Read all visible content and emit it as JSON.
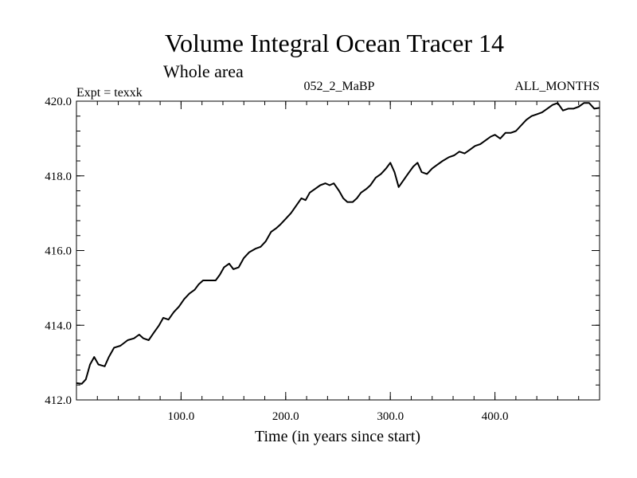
{
  "chart_data": {
    "type": "line",
    "title": "Volume Integral Ocean Tracer 14",
    "subtitle": "Whole area",
    "left_label": "Expt = texxk",
    "center_label": "052_2_MaBP",
    "right_label": "ALL_MONTHS",
    "xlabel": "Time (in years since start)",
    "ylabel": "",
    "xlim": [
      0,
      500
    ],
    "ylim": [
      412.0,
      420.0
    ],
    "x_ticks": [
      {
        "value": 100,
        "label": "100.0"
      },
      {
        "value": 200,
        "label": "200.0"
      },
      {
        "value": 300,
        "label": "300.0"
      },
      {
        "value": 400,
        "label": "400.0"
      }
    ],
    "y_ticks": [
      {
        "value": 412,
        "label": "412.0"
      },
      {
        "value": 414,
        "label": "414.0"
      },
      {
        "value": 416,
        "label": "416.0"
      },
      {
        "value": 418,
        "label": "418.0"
      },
      {
        "value": 420,
        "label": "420.0"
      }
    ],
    "x_minor_step": 20,
    "y_minor_step": 0.4,
    "grid": false,
    "series": [
      {
        "name": "Volume Integral Ocean Tracer 14",
        "color": "#000000",
        "points": [
          [
            0,
            412.45
          ],
          [
            5,
            412.43
          ],
          [
            9,
            412.55
          ],
          [
            13,
            412.95
          ],
          [
            17,
            413.15
          ],
          [
            21,
            412.95
          ],
          [
            27,
            412.9
          ],
          [
            31,
            413.15
          ],
          [
            36,
            413.4
          ],
          [
            42,
            413.45
          ],
          [
            49,
            413.6
          ],
          [
            55,
            413.65
          ],
          [
            60,
            413.75
          ],
          [
            64,
            413.65
          ],
          [
            69,
            413.6
          ],
          [
            74,
            413.8
          ],
          [
            79,
            414.0
          ],
          [
            83,
            414.2
          ],
          [
            88,
            414.15
          ],
          [
            93,
            414.35
          ],
          [
            98,
            414.5
          ],
          [
            103,
            414.7
          ],
          [
            108,
            414.85
          ],
          [
            113,
            414.95
          ],
          [
            117,
            415.1
          ],
          [
            121,
            415.2
          ],
          [
            126,
            415.2
          ],
          [
            133,
            415.2
          ],
          [
            137,
            415.35
          ],
          [
            141,
            415.55
          ],
          [
            146,
            415.65
          ],
          [
            150,
            415.5
          ],
          [
            155,
            415.55
          ],
          [
            160,
            415.8
          ],
          [
            165,
            415.95
          ],
          [
            171,
            416.05
          ],
          [
            176,
            416.1
          ],
          [
            181,
            416.25
          ],
          [
            186,
            416.5
          ],
          [
            191,
            416.6
          ],
          [
            195,
            416.7
          ],
          [
            200,
            416.85
          ],
          [
            205,
            417.0
          ],
          [
            210,
            417.2
          ],
          [
            215,
            417.4
          ],
          [
            219,
            417.35
          ],
          [
            223,
            417.55
          ],
          [
            228,
            417.65
          ],
          [
            233,
            417.75
          ],
          [
            238,
            417.8
          ],
          [
            242,
            417.75
          ],
          [
            246,
            417.8
          ],
          [
            251,
            417.6
          ],
          [
            255,
            417.4
          ],
          [
            259,
            417.3
          ],
          [
            264,
            417.3
          ],
          [
            268,
            417.4
          ],
          [
            272,
            417.55
          ],
          [
            277,
            417.65
          ],
          [
            281,
            417.75
          ],
          [
            286,
            417.95
          ],
          [
            291,
            418.05
          ],
          [
            296,
            418.2
          ],
          [
            300,
            418.35
          ],
          [
            304,
            418.1
          ],
          [
            308,
            417.7
          ],
          [
            313,
            417.9
          ],
          [
            318,
            418.1
          ],
          [
            322,
            418.25
          ],
          [
            326,
            418.35
          ],
          [
            330,
            418.1
          ],
          [
            335,
            418.05
          ],
          [
            340,
            418.2
          ],
          [
            345,
            418.3
          ],
          [
            350,
            418.4
          ],
          [
            356,
            418.5
          ],
          [
            361,
            418.55
          ],
          [
            366,
            418.65
          ],
          [
            371,
            418.6
          ],
          [
            376,
            418.7
          ],
          [
            381,
            418.8
          ],
          [
            386,
            418.85
          ],
          [
            391,
            418.95
          ],
          [
            396,
            419.05
          ],
          [
            400,
            419.1
          ],
          [
            405,
            419.0
          ],
          [
            410,
            419.15
          ],
          [
            415,
            419.15
          ],
          [
            420,
            419.2
          ],
          [
            425,
            419.35
          ],
          [
            430,
            419.5
          ],
          [
            435,
            419.6
          ],
          [
            440,
            419.65
          ],
          [
            445,
            419.7
          ],
          [
            450,
            419.8
          ],
          [
            455,
            419.9
          ],
          [
            460,
            419.95
          ],
          [
            465,
            419.75
          ],
          [
            470,
            419.8
          ],
          [
            475,
            419.8
          ],
          [
            480,
            419.85
          ],
          [
            485,
            419.95
          ],
          [
            490,
            419.95
          ],
          [
            495,
            419.8
          ],
          [
            500,
            419.82
          ]
        ]
      }
    ]
  }
}
